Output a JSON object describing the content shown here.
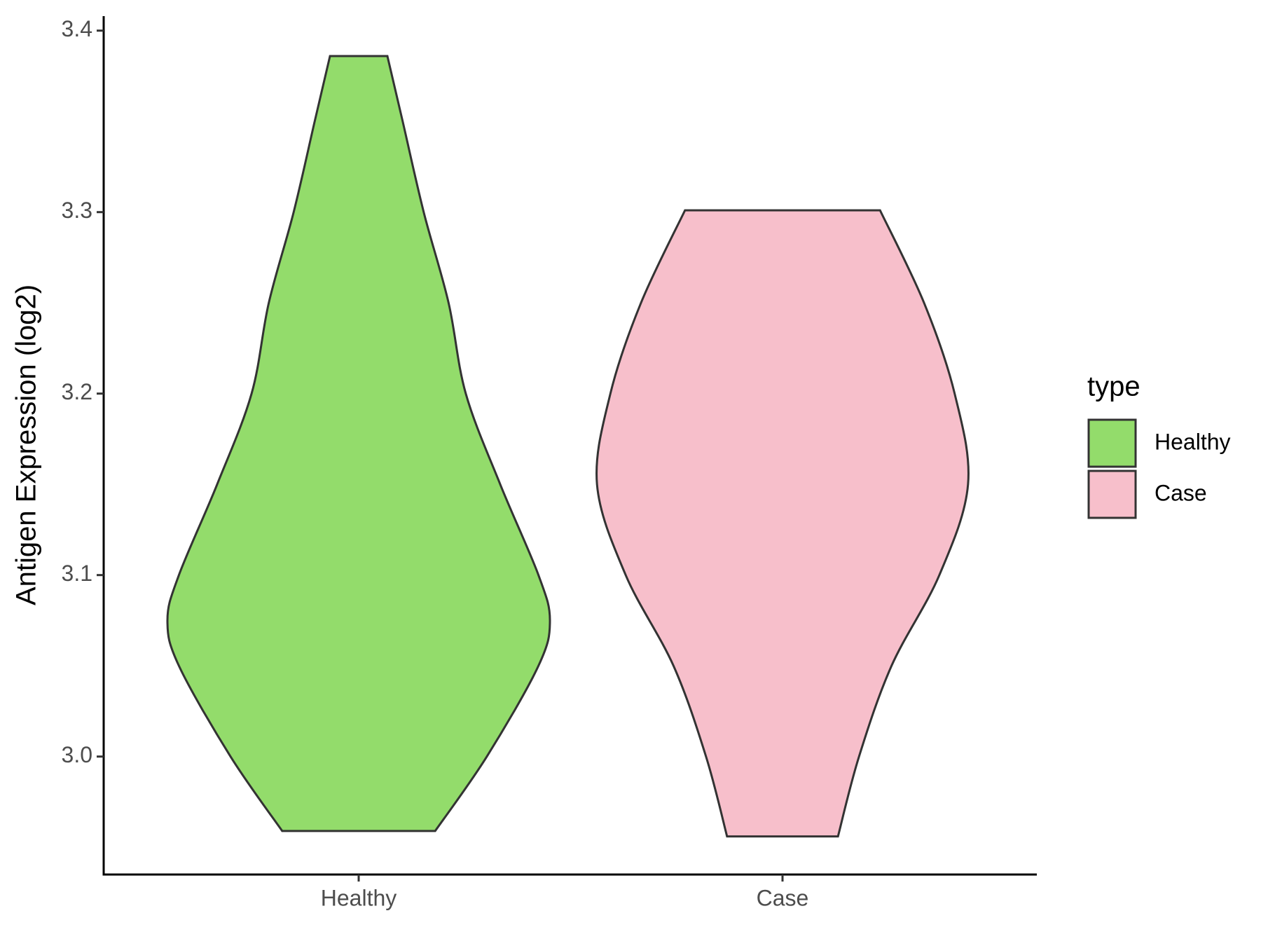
{
  "chart_data": {
    "type": "violin",
    "ylabel": "Antigen Expression (log2)",
    "categories": [
      "Healthy",
      "Case"
    ],
    "ylim": [
      2.935,
      3.408
    ],
    "yticks": [
      {
        "value": 3,
        "label": "3.0"
      },
      3.1,
      3.2,
      3.3,
      3.4
    ],
    "legend_title": "type",
    "legend": "right",
    "series": [
      {
        "name": "Healthy",
        "color": "#93dc6b",
        "y": [
          2.959,
          3.0,
          3.05,
          3.075,
          3.1,
          3.15,
          3.2,
          3.25,
          3.3,
          3.35,
          3.386
        ],
        "density": [
          0.4,
          0.67,
          0.94,
          1.0,
          0.94,
          0.74,
          0.56,
          0.47,
          0.34,
          0.23,
          0.15
        ]
      },
      {
        "name": "Case",
        "color": "#f7bfcb",
        "y": [
          2.956,
          3.0,
          3.05,
          3.1,
          3.15,
          3.2,
          3.25,
          3.301
        ],
        "density": [
          0.29,
          0.4,
          0.57,
          0.82,
          0.97,
          0.9,
          0.74,
          0.51
        ]
      }
    ]
  }
}
